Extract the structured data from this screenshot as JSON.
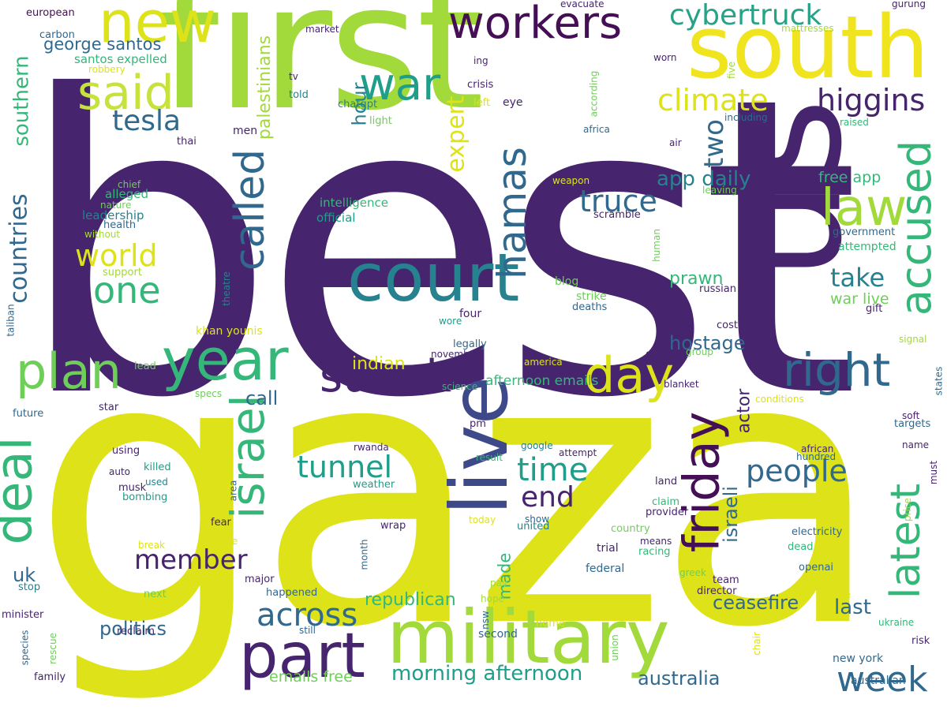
{
  "palette": {
    "dark_purple": "#46246e",
    "purple": "#472f7d",
    "indigo": "#3e4989",
    "steel_blue": "#31688e",
    "teal": "#26828e",
    "teal_green": "#1f9e89",
    "green": "#35b779",
    "bright_green": "#6ece58",
    "lime": "#a2d93b",
    "yellow": "#dde318",
    "bright_yellow": "#f0e41f"
  },
  "words": [
    {
      "text": "best",
      "color": "#46246e"
    },
    {
      "text": "gaza",
      "color": "#dde318"
    },
    {
      "text": "first",
      "color": "#a2d93b"
    },
    {
      "text": "us",
      "color": "#46246e"
    },
    {
      "text": "south",
      "color": "#f0e41f"
    },
    {
      "text": "new",
      "color": "#dde318"
    },
    {
      "text": "war",
      "color": "#1f9e89"
    },
    {
      "text": "workers",
      "color": "#440f54"
    },
    {
      "text": "cybertruck",
      "color": "#26a387"
    },
    {
      "text": "said",
      "color": "#c6e23c"
    },
    {
      "text": "tesla",
      "color": "#31688e"
    },
    {
      "text": "climate",
      "color": "#dde318"
    },
    {
      "text": "higgins",
      "color": "#46246e"
    },
    {
      "text": "accused",
      "color": "#35b779"
    },
    {
      "text": "law",
      "color": "#a2d93b"
    },
    {
      "text": "court",
      "color": "#26828e"
    },
    {
      "text": "hamas",
      "color": "#31688e"
    },
    {
      "text": "called",
      "color": "#31688e"
    },
    {
      "text": "expert",
      "color": "#dde318"
    },
    {
      "text": "hour",
      "color": "#26828e"
    },
    {
      "text": "palestinians",
      "color": "#a2d93b"
    },
    {
      "text": "george santos",
      "color": "#31688e"
    },
    {
      "text": "santos expelled",
      "color": "#35b779"
    },
    {
      "text": "robbery",
      "color": "#dde318"
    },
    {
      "text": "carbon",
      "color": "#31688e"
    },
    {
      "text": "european",
      "color": "#440f54"
    },
    {
      "text": "southern",
      "color": "#35b779"
    },
    {
      "text": "countries",
      "color": "#31688e"
    },
    {
      "text": "deal",
      "color": "#35b779"
    },
    {
      "text": "plan",
      "color": "#6ece58"
    },
    {
      "text": "year",
      "color": "#35b779"
    },
    {
      "text": "world",
      "color": "#dde318"
    },
    {
      "text": "one",
      "color": "#35b779"
    },
    {
      "text": "two",
      "color": "#31688e"
    },
    {
      "text": "truce",
      "color": "#31688e"
    },
    {
      "text": "app daily",
      "color": "#26828e"
    },
    {
      "text": "free app",
      "color": "#35b779"
    },
    {
      "text": "government",
      "color": "#31688e"
    },
    {
      "text": "attempted",
      "color": "#35b779"
    },
    {
      "text": "take",
      "color": "#26828e"
    },
    {
      "text": "war live",
      "color": "#6ece58"
    },
    {
      "text": "prawn",
      "color": "#35b779"
    },
    {
      "text": "right",
      "color": "#31688e"
    },
    {
      "text": "day",
      "color": "#dde318"
    },
    {
      "text": "sunak",
      "color": "#46246e"
    },
    {
      "text": "live",
      "color": "#3e4989"
    },
    {
      "text": "israel",
      "color": "#35b779"
    },
    {
      "text": "friday",
      "color": "#440f54"
    },
    {
      "text": "latest",
      "color": "#35b779"
    },
    {
      "text": "hostage",
      "color": "#31688e"
    },
    {
      "text": "indian",
      "color": "#dde318"
    },
    {
      "text": "call",
      "color": "#31688e"
    },
    {
      "text": "tunnel",
      "color": "#1f9e89"
    },
    {
      "text": "time",
      "color": "#1f9e89"
    },
    {
      "text": "end",
      "color": "#46246e"
    },
    {
      "text": "people",
      "color": "#31688e"
    },
    {
      "text": "member",
      "color": "#46246e"
    },
    {
      "text": "actor",
      "color": "#46246e"
    },
    {
      "text": "israeli",
      "color": "#31688e"
    },
    {
      "text": "afternoon emails",
      "color": "#35b779"
    },
    {
      "text": "politics",
      "color": "#31688e"
    },
    {
      "text": "across",
      "color": "#31688e"
    },
    {
      "text": "part",
      "color": "#46246e"
    },
    {
      "text": "military",
      "color": "#a2d93b"
    },
    {
      "text": "ceasefire",
      "color": "#31688e"
    },
    {
      "text": "last",
      "color": "#31688e"
    },
    {
      "text": "week",
      "color": "#31688e"
    },
    {
      "text": "republican",
      "color": "#35b779"
    },
    {
      "text": "morning afternoon",
      "color": "#1f9e89"
    },
    {
      "text": "australia",
      "color": "#31688e"
    },
    {
      "text": "emails free",
      "color": "#6ece58"
    },
    {
      "text": "uk",
      "color": "#31688e"
    },
    {
      "text": "made",
      "color": "#35b779"
    },
    {
      "text": "intelligence",
      "color": "#35b779"
    },
    {
      "text": "official",
      "color": "#1f9e89"
    },
    {
      "text": "leadership",
      "color": "#26828e"
    },
    {
      "text": "health",
      "color": "#31688e"
    },
    {
      "text": "alleged",
      "color": "#35b779"
    },
    {
      "text": "nature",
      "color": "#6ece58"
    },
    {
      "text": "chief",
      "color": "#6ece58"
    },
    {
      "text": "without",
      "color": "#a2d93b"
    },
    {
      "text": "support",
      "color": "#a2d93b"
    },
    {
      "text": "market",
      "color": "#46246e"
    },
    {
      "text": "evacuate",
      "color": "#46246e"
    },
    {
      "text": "mattresses",
      "color": "#a2d93b"
    },
    {
      "text": "gurung",
      "color": "#46246e"
    },
    {
      "text": "ing",
      "color": "#46246e"
    },
    {
      "text": "crisis",
      "color": "#46246e"
    },
    {
      "text": "left",
      "color": "#dde318"
    },
    {
      "text": "eye",
      "color": "#46246e"
    },
    {
      "text": "according",
      "color": "#6ece58"
    },
    {
      "text": "five",
      "color": "#a2d93b"
    },
    {
      "text": "worn",
      "color": "#46246e"
    },
    {
      "text": "including",
      "color": "#31688e"
    },
    {
      "text": "raised",
      "color": "#35b779"
    },
    {
      "text": "africa",
      "color": "#31688e"
    },
    {
      "text": "air",
      "color": "#46246e"
    },
    {
      "text": "tv",
      "color": "#46246e"
    },
    {
      "text": "told",
      "color": "#26828e"
    },
    {
      "text": "chatgpt",
      "color": "#26828e"
    },
    {
      "text": "light",
      "color": "#6ece58"
    },
    {
      "text": "men",
      "color": "#46246e"
    },
    {
      "text": "thai",
      "color": "#46246e"
    },
    {
      "text": "make",
      "color": "#46246e"
    },
    {
      "text": "weapon",
      "color": "#dde318"
    },
    {
      "text": "leaving",
      "color": "#6ece58"
    },
    {
      "text": "scramble",
      "color": "#46246e"
    },
    {
      "text": "sale",
      "color": "#46246e"
    },
    {
      "text": "three",
      "color": "#46246e"
    },
    {
      "text": "human",
      "color": "#6ece58"
    },
    {
      "text": "russian",
      "color": "#46246e"
    },
    {
      "text": "blog",
      "color": "#6ece58"
    },
    {
      "text": "strike",
      "color": "#6ece58"
    },
    {
      "text": "deaths",
      "color": "#31688e"
    },
    {
      "text": "four",
      "color": "#46246e"
    },
    {
      "text": "gift",
      "color": "#46246e"
    },
    {
      "text": "wore",
      "color": "#1f9e89"
    },
    {
      "text": "theatre",
      "color": "#26828e"
    },
    {
      "text": "gay",
      "color": "#46246e"
    },
    {
      "text": "taliban",
      "color": "#31688e"
    },
    {
      "text": "khan younis",
      "color": "#dde318"
    },
    {
      "text": "cost",
      "color": "#46246e"
    },
    {
      "text": "signal",
      "color": "#a2d93b"
    },
    {
      "text": "legally",
      "color": "#31688e"
    },
    {
      "text": "november",
      "color": "#46246e"
    },
    {
      "text": "gergiev",
      "color": "#46246e"
    },
    {
      "text": "group",
      "color": "#6ece58"
    },
    {
      "text": "america",
      "color": "#dde318"
    },
    {
      "text": "lead",
      "color": "#6ece58"
    },
    {
      "text": "blanket",
      "color": "#46246e"
    },
    {
      "text": "states",
      "color": "#31688e"
    },
    {
      "text": "conditions",
      "color": "#dde318"
    },
    {
      "text": "specs",
      "color": "#6ece58"
    },
    {
      "text": "star",
      "color": "#46246e"
    },
    {
      "text": "science",
      "color": "#35b779"
    },
    {
      "text": "future",
      "color": "#31688e"
    },
    {
      "text": "pm",
      "color": "#46246e"
    },
    {
      "text": "soft",
      "color": "#46246e"
    },
    {
      "text": "targets",
      "color": "#31688e"
    },
    {
      "text": "using",
      "color": "#46246e"
    },
    {
      "text": "rwanda",
      "color": "#46246e"
    },
    {
      "text": "result",
      "color": "#35b779"
    },
    {
      "text": "google",
      "color": "#26828e"
    },
    {
      "text": "attempt",
      "color": "#46246e"
    },
    {
      "text": "african",
      "color": "#46246e"
    },
    {
      "text": "hundred",
      "color": "#31688e"
    },
    {
      "text": "name",
      "color": "#46246e"
    },
    {
      "text": "must",
      "color": "#46246e"
    },
    {
      "text": "auto",
      "color": "#46246e"
    },
    {
      "text": "killed",
      "color": "#1f9e89"
    },
    {
      "text": "used",
      "color": "#26828e"
    },
    {
      "text": "musk",
      "color": "#46246e"
    },
    {
      "text": "bombing",
      "color": "#1f9e89"
    },
    {
      "text": "area",
      "color": "#31688e"
    },
    {
      "text": "weather",
      "color": "#1f9e89"
    },
    {
      "text": "land",
      "color": "#46246e"
    },
    {
      "text": "claim",
      "color": "#35b779"
    },
    {
      "text": "provider",
      "color": "#46246e"
    },
    {
      "text": "price",
      "color": "#a2d93b"
    },
    {
      "text": "fear",
      "color": "#46246e"
    },
    {
      "text": "wrap",
      "color": "#46246e"
    },
    {
      "text": "show",
      "color": "#31688e"
    },
    {
      "text": "united",
      "color": "#26828e"
    },
    {
      "text": "country",
      "color": "#6ece58"
    },
    {
      "text": "means",
      "color": "#46246e"
    },
    {
      "text": "racing",
      "color": "#35b779"
    },
    {
      "text": "score",
      "color": "#dde318"
    },
    {
      "text": "break",
      "color": "#dde318"
    },
    {
      "text": "today",
      "color": "#dde318"
    },
    {
      "text": "month",
      "color": "#31688e"
    },
    {
      "text": "trial",
      "color": "#46246e"
    },
    {
      "text": "electricity",
      "color": "#31688e"
    },
    {
      "text": "dead",
      "color": "#35b779"
    },
    {
      "text": "openai",
      "color": "#31688e"
    },
    {
      "text": "federal",
      "color": "#31688e"
    },
    {
      "text": "stop",
      "color": "#26828e"
    },
    {
      "text": "major",
      "color": "#46246e"
    },
    {
      "text": "next",
      "color": "#6ece58"
    },
    {
      "text": "greek",
      "color": "#6ece58"
    },
    {
      "text": "team",
      "color": "#46246e"
    },
    {
      "text": "director",
      "color": "#46246e"
    },
    {
      "text": "happened",
      "color": "#31688e"
    },
    {
      "text": "pay",
      "color": "#a2d93b"
    },
    {
      "text": "hope",
      "color": "#a2d93b"
    },
    {
      "text": "save",
      "color": "#dde318"
    },
    {
      "text": "minister",
      "color": "#46246e"
    },
    {
      "text": "nsw",
      "color": "#31688e"
    },
    {
      "text": "ukraine",
      "color": "#35b779"
    },
    {
      "text": "reclaim",
      "color": "#46246e"
    },
    {
      "text": "still",
      "color": "#31688e"
    },
    {
      "text": "home",
      "color": "#dde318"
    },
    {
      "text": "union",
      "color": "#6ece58"
    },
    {
      "text": "chair",
      "color": "#dde318"
    },
    {
      "text": "risk",
      "color": "#46246e"
    },
    {
      "text": "species",
      "color": "#31688e"
    },
    {
      "text": "rescue",
      "color": "#6ece58"
    },
    {
      "text": "second",
      "color": "#31688e"
    },
    {
      "text": "new york",
      "color": "#31688e"
    },
    {
      "text": "family",
      "color": "#46246e"
    },
    {
      "text": "australian",
      "color": "#31688e"
    }
  ]
}
